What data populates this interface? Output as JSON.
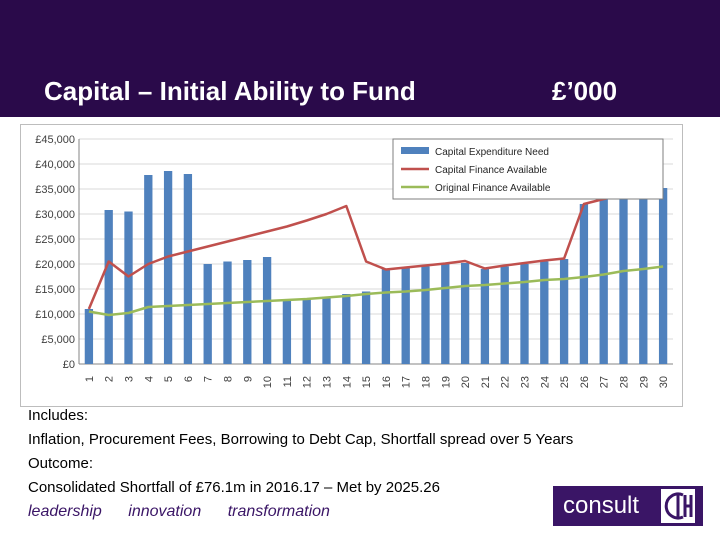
{
  "header": {
    "title": "Capital – Initial Ability to Fund",
    "unit": "£’000",
    "background_color": "#2a0a4a"
  },
  "chart_data": {
    "type": "bar",
    "title": "",
    "xlabel": "",
    "ylabel": "",
    "ylim": [
      0,
      45000
    ],
    "yticks": [
      "£0",
      "£5,000",
      "£10,000",
      "£15,000",
      "£20,000",
      "£25,000",
      "£30,000",
      "£35,000",
      "£40,000",
      "£45,000"
    ],
    "categories": [
      "1",
      "2",
      "3",
      "4",
      "5",
      "6",
      "7",
      "8",
      "9",
      "10",
      "11",
      "12",
      "13",
      "14",
      "15",
      "16",
      "17",
      "18",
      "19",
      "20",
      "21",
      "22",
      "23",
      "24",
      "25",
      "26",
      "27",
      "28",
      "29",
      "30"
    ],
    "grid": true,
    "legend": "top-right",
    "series": [
      {
        "name": "Capital Expenditure Need",
        "kind": "bar",
        "color": "#4f81bd",
        "values": [
          11000,
          30800,
          30500,
          37800,
          38600,
          38000,
          20000,
          20500,
          20800,
          21400,
          12800,
          13000,
          13500,
          14000,
          14500,
          19000,
          19200,
          19500,
          20000,
          20200,
          19000,
          19500,
          20000,
          20500,
          21000,
          32000,
          33000,
          33500,
          34300,
          35200
        ]
      },
      {
        "name": "Capital Finance Available",
        "kind": "line",
        "color": "#c0504d",
        "values": [
          11000,
          20500,
          17500,
          20000,
          21500,
          22500,
          23500,
          24500,
          25500,
          26500,
          27500,
          28700,
          30000,
          31600,
          20500,
          18900,
          19300,
          19700,
          20100,
          20600,
          19100,
          19700,
          20200,
          20700,
          21100,
          32000,
          33000,
          33800,
          34500,
          35200
        ]
      },
      {
        "name": "Original Finance Available",
        "kind": "line",
        "color": "#9bbb59",
        "values": [
          10500,
          9800,
          10200,
          11400,
          11600,
          11800,
          12000,
          12200,
          12400,
          12600,
          12800,
          13000,
          13300,
          13600,
          14000,
          14300,
          14500,
          14800,
          15200,
          15600,
          15800,
          16100,
          16400,
          16800,
          17000,
          17400,
          17900,
          18600,
          19000,
          19500
        ]
      }
    ]
  },
  "notes": {
    "line1": "Includes:",
    "line2": "Inflation, Procurement Fees, Borrowing to Debt Cap, Shortfall spread over 5 Years",
    "line3": "Outcome:",
    "line4": "Consolidated Shortfall of £76.1m in 2016.17 – Met by 2025.26"
  },
  "footer": {
    "word1": "leadership",
    "word2": "innovation",
    "word3": "transformation",
    "color": "#3a1566"
  },
  "logo": {
    "text": "consult",
    "mark_icon": "cih-mark-icon"
  }
}
